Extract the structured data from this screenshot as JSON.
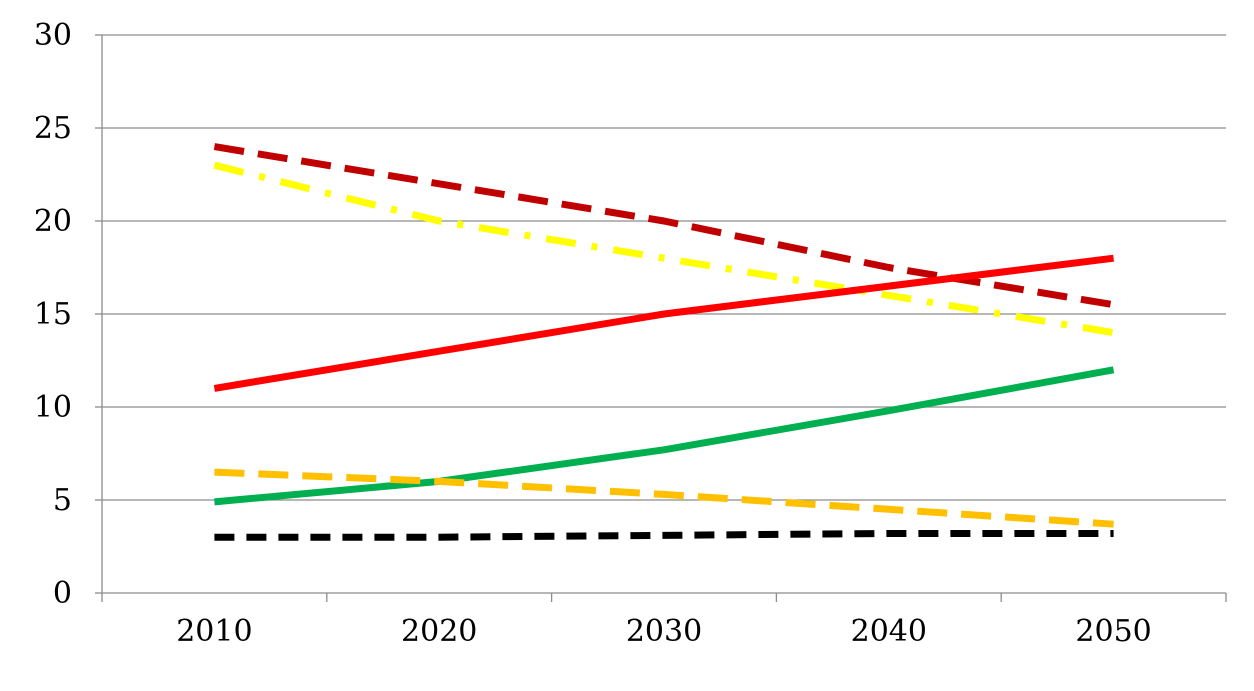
{
  "chart_data": {
    "type": "line",
    "title": "",
    "xlabel": "",
    "ylabel": "",
    "x": [
      2010,
      2020,
      2030,
      2040,
      2050
    ],
    "x_tick_labels": [
      "2010",
      "2020",
      "2030",
      "2040",
      "2050"
    ],
    "y_tick_labels": [
      "0",
      "5",
      "10",
      "15",
      "20",
      "25",
      "30"
    ],
    "ylim": [
      0,
      30
    ],
    "grid": "horizontal",
    "legend": "none",
    "series": [
      {
        "values": [
          24,
          22,
          20,
          17.5,
          15.5
        ],
        "color": "#c00000",
        "style": "dashed"
      },
      {
        "values": [
          23,
          20,
          18,
          16,
          14
        ],
        "color": "#ffff00",
        "style": "dash-dot"
      },
      {
        "values": [
          11,
          13,
          15,
          16.5,
          18
        ],
        "color": "#ff0000",
        "style": "solid"
      },
      {
        "values": [
          4.9,
          6,
          7.7,
          9.8,
          12
        ],
        "color": "#00b050",
        "style": "solid"
      },
      {
        "values": [
          6.5,
          6,
          5.3,
          4.5,
          3.7
        ],
        "color": "#ffc000",
        "style": "dashed"
      },
      {
        "values": [
          3,
          3,
          3.1,
          3.2,
          3.2
        ],
        "color": "#000000",
        "style": "dashed"
      }
    ]
  }
}
